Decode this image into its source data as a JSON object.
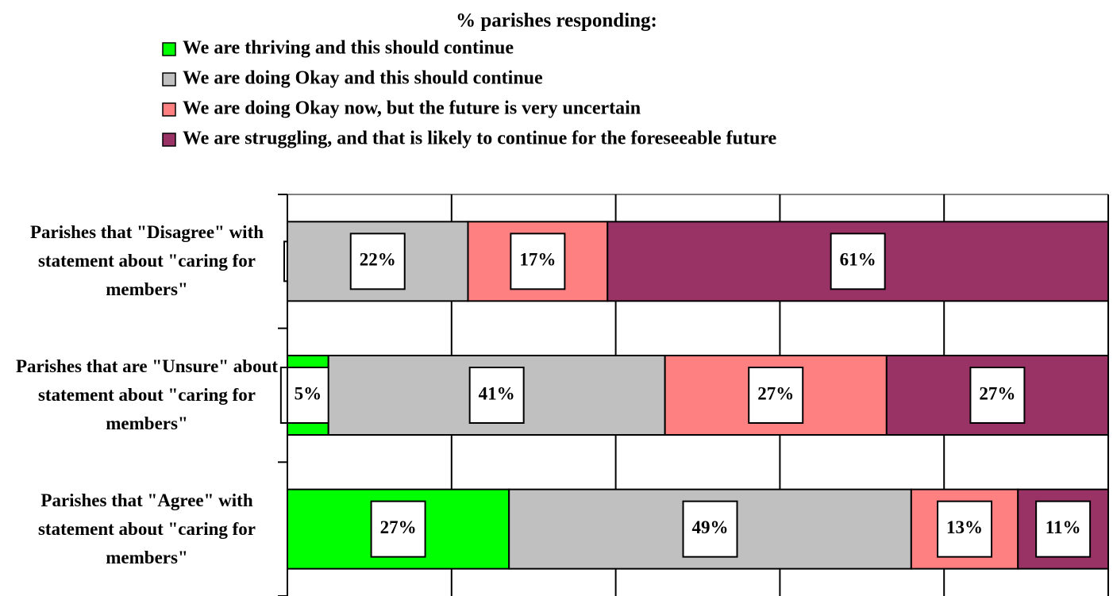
{
  "chart_data": {
    "type": "stacked_bar_horizontal",
    "legend_title": "% parishes responding:",
    "categories": [
      "Parishes that \"Disagree\" with statement about \"caring for members\"",
      "Parishes that are \"Unsure\" about statement about \"caring for members\"",
      "Parishes that \"Agree\" with statement about \"caring for members\""
    ],
    "series": [
      {
        "name": "We are thriving and this should continue",
        "color": "#00ff00",
        "values": [
          0,
          5,
          27
        ],
        "value_labels": [
          null,
          "5%",
          "27%"
        ]
      },
      {
        "name": "We are doing Okay and this should continue",
        "color": "#c0c0c0",
        "values": [
          22,
          41,
          49
        ],
        "value_labels": [
          "22%",
          "41%",
          "49%"
        ]
      },
      {
        "name": "We are doing Okay now, but the future is very uncertain",
        "color": "#ff8080",
        "values": [
          17,
          27,
          13
        ],
        "value_labels": [
          "17%",
          "27%",
          "13%"
        ]
      },
      {
        "name": "We are struggling, and that is likely to continue for the foreseeable future",
        "color": "#993366",
        "values": [
          61,
          27,
          11
        ],
        "value_labels": [
          "61%",
          "27%",
          "11%"
        ]
      }
    ],
    "xlim": [
      0,
      100
    ],
    "xticks": [
      0,
      20,
      40,
      60,
      80,
      100
    ],
    "grid": true
  }
}
